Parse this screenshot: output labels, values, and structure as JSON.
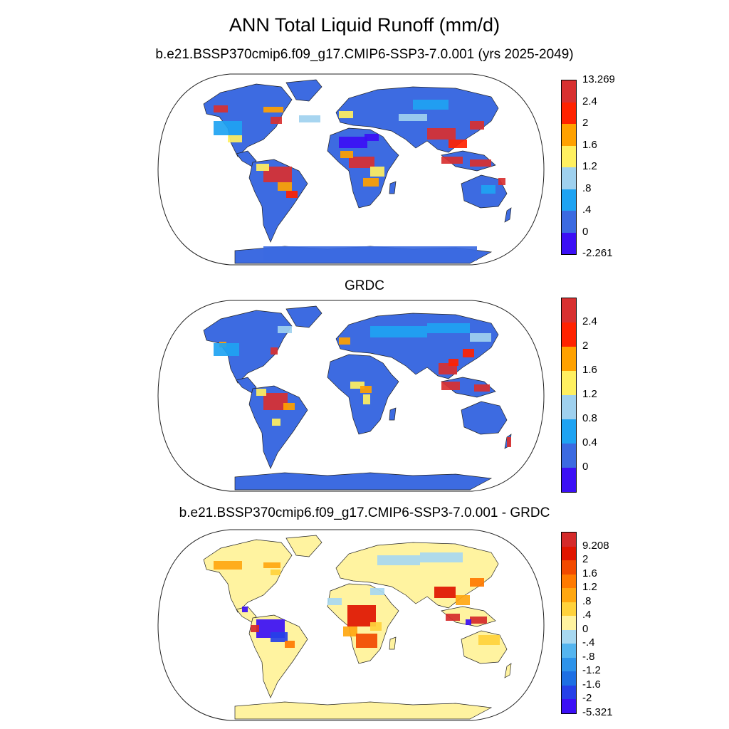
{
  "titles": {
    "main": "ANN Total Liquid Runoff (mm/d)",
    "panel1": "b.e21.BSSP370cmip6.f09_g17.CMIP6-SSP3-7.0.001 (yrs 2025-2049)",
    "panel2": "GRDC",
    "panel3": "b.e21.BSSP370cmip6.f09_g17.CMIP6-SSP3-7.0.001 - GRDC"
  },
  "panels": [
    {
      "id": "model",
      "colorbar": {
        "colors": [
          "#3b0ff5",
          "#3b6ae1",
          "#1ea3f2",
          "#9fd1ef",
          "#fff060",
          "#ffa100",
          "#ff2200",
          "#d83030"
        ],
        "labels": [
          "-2.261",
          "0",
          ".4",
          ".8",
          "1.2",
          "1.6",
          "2",
          "2.4",
          "13.269"
        ]
      },
      "land_color": "#3d6be1"
    },
    {
      "id": "obs",
      "colorbar": {
        "colors": [
          "#3b0ff5",
          "#3b6ae1",
          "#1ea3f2",
          "#9fd1ef",
          "#fff060",
          "#ffa100",
          "#ff2200",
          "#d83030"
        ],
        "labels": [
          "0",
          "0.4",
          "0.8",
          "1.2",
          "1.6",
          "2",
          "2.4"
        ]
      },
      "land_color": "#3d6be1"
    },
    {
      "id": "diff",
      "colorbar": {
        "colors": [
          "#3b0ff5",
          "#2540e8",
          "#1d6fe4",
          "#2d93ea",
          "#55b5ef",
          "#a8d8f0",
          "#fff3a0",
          "#ffd23c",
          "#ffa710",
          "#ff7a00",
          "#f24a00",
          "#e01500",
          "#d52a2a"
        ],
        "labels": [
          "-5.321",
          "-2",
          "-1.6",
          "-1.2",
          "-.8",
          "-.4",
          "0",
          ".4",
          ".8",
          "1.2",
          "1.6",
          "2",
          "9.208"
        ]
      },
      "land_color": "#fff3a0"
    }
  ]
}
